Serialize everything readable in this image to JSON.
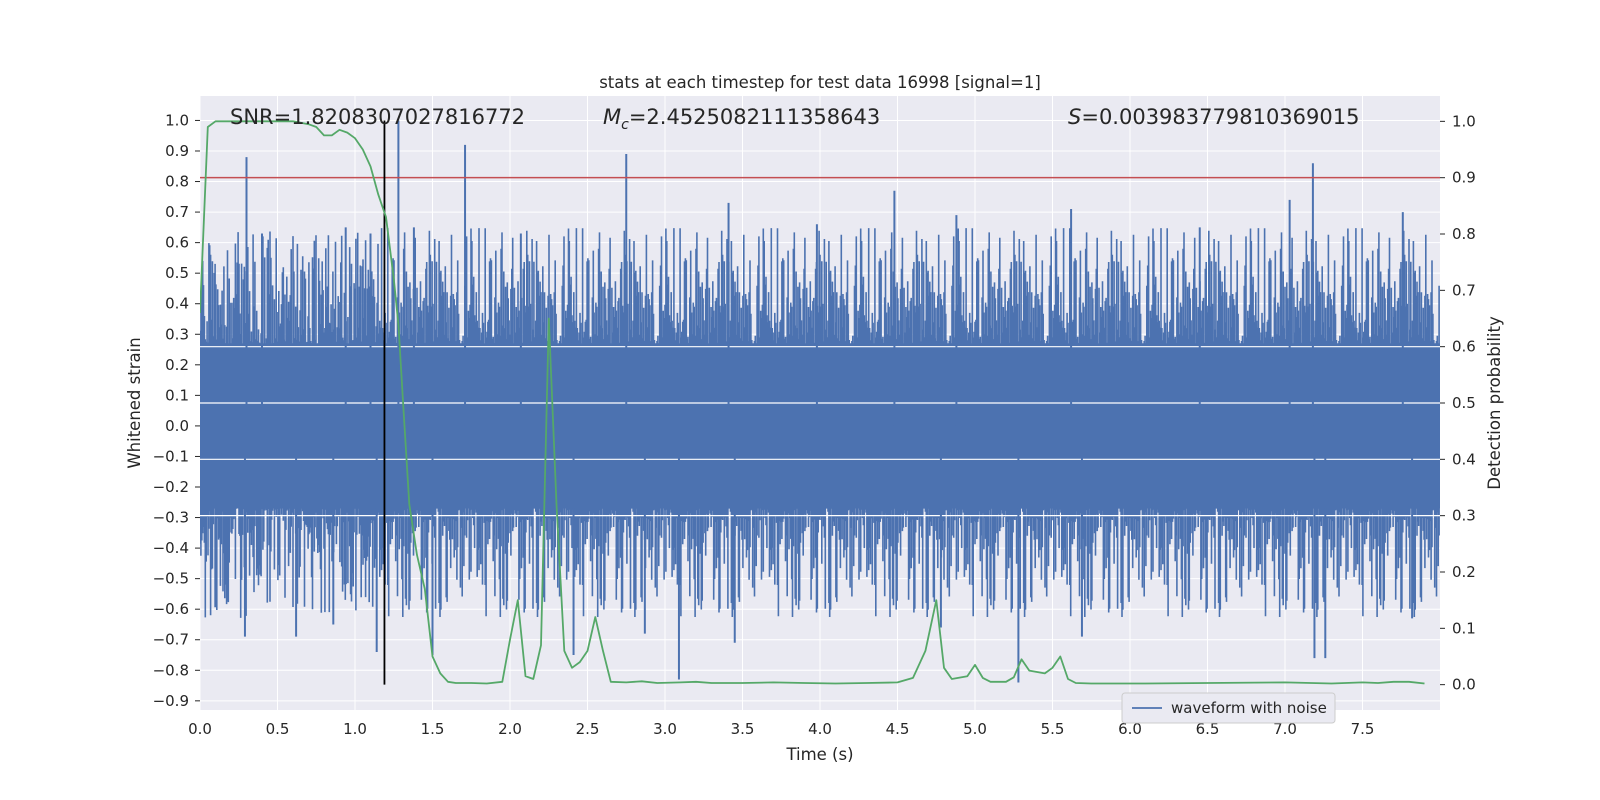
{
  "chart_data": {
    "type": "line",
    "title": "stats at each timestep for test data 16998 [signal=1]",
    "xlabel": "Time (s)",
    "ylabel": "Whitened strain",
    "ylabel_right": "Detection probability",
    "xlim": [
      0.0,
      8.0
    ],
    "ylim": [
      -0.93,
      1.08
    ],
    "ylim_right": [
      -0.045,
      1.045
    ],
    "x_ticks": [
      "0.0",
      "0.5",
      "1.0",
      "1.5",
      "2.0",
      "2.5",
      "3.0",
      "3.5",
      "4.0",
      "4.5",
      "5.0",
      "5.5",
      "6.0",
      "6.5",
      "7.0",
      "7.5"
    ],
    "y_ticks": [
      "−0.9",
      "−0.8",
      "−0.7",
      "−0.6",
      "−0.5",
      "−0.4",
      "−0.3",
      "−0.2",
      "−0.1",
      "0.0",
      "0.1",
      "0.2",
      "0.3",
      "0.4",
      "0.5",
      "0.6",
      "0.7",
      "0.8",
      "0.9",
      "1.0"
    ],
    "y_ticks_right": [
      "0.0",
      "0.1",
      "0.2",
      "0.3",
      "0.4",
      "0.5",
      "0.6",
      "0.7",
      "0.8",
      "0.9",
      "1.0"
    ],
    "annotations": {
      "snr": "SNR=1.8208307027816772",
      "mc_symbol": "M",
      "mc_sub": "c",
      "mc_value": "=2.4525082111358643",
      "s_symbol": "S",
      "s_value": "=0.003983779810369015"
    },
    "threshold_prob": 0.9,
    "event_time": 1.19,
    "series": [
      {
        "name": "waveform with noise",
        "axis": "left",
        "color": "#4c72b0",
        "envelope_core": 0.27,
        "spikes": [
          {
            "x": 0.3,
            "y": 0.88
          },
          {
            "x": 0.29,
            "y": -0.69
          },
          {
            "x": 0.4,
            "y": 0.63
          },
          {
            "x": 0.62,
            "y": -0.69
          },
          {
            "x": 0.86,
            "y": -0.65
          },
          {
            "x": 0.94,
            "y": 0.65
          },
          {
            "x": 1.1,
            "y": 0.63
          },
          {
            "x": 1.14,
            "y": -0.74
          },
          {
            "x": 1.28,
            "y": 1.0
          },
          {
            "x": 1.38,
            "y": 0.65
          },
          {
            "x": 1.5,
            "y": -0.75
          },
          {
            "x": 1.71,
            "y": 0.92
          },
          {
            "x": 2.07,
            "y": 0.63
          },
          {
            "x": 2.41,
            "y": -0.75
          },
          {
            "x": 2.75,
            "y": 0.89
          },
          {
            "x": 2.87,
            "y": -0.68
          },
          {
            "x": 3.09,
            "y": -0.83
          },
          {
            "x": 3.41,
            "y": 0.73
          },
          {
            "x": 3.45,
            "y": -0.71
          },
          {
            "x": 3.98,
            "y": 0.66
          },
          {
            "x": 4.48,
            "y": 0.77
          },
          {
            "x": 4.78,
            "y": -0.66
          },
          {
            "x": 4.88,
            "y": 0.69
          },
          {
            "x": 5.28,
            "y": -0.84
          },
          {
            "x": 5.62,
            "y": 0.71
          },
          {
            "x": 5.69,
            "y": -0.69
          },
          {
            "x": 6.45,
            "y": 0.65
          },
          {
            "x": 7.03,
            "y": 0.74
          },
          {
            "x": 7.18,
            "y": 0.86
          },
          {
            "x": 7.19,
            "y": -0.76
          },
          {
            "x": 7.26,
            "y": -0.76
          },
          {
            "x": 7.76,
            "y": 0.7
          },
          {
            "x": 7.82,
            "y": -0.63
          }
        ]
      },
      {
        "name": "",
        "axis": "right",
        "color": "#55a868",
        "x": [
          0.0,
          0.05,
          0.1,
          0.2,
          0.3,
          0.4,
          0.5,
          0.6,
          0.7,
          0.75,
          0.8,
          0.85,
          0.9,
          0.95,
          1.0,
          1.05,
          1.1,
          1.15,
          1.2,
          1.25,
          1.28,
          1.31,
          1.35,
          1.4,
          1.45,
          1.5,
          1.55,
          1.6,
          1.65,
          1.75,
          1.85,
          1.95,
          2.0,
          2.05,
          2.1,
          2.15,
          2.2,
          2.25,
          2.3,
          2.35,
          2.4,
          2.45,
          2.5,
          2.55,
          2.6,
          2.65,
          2.75,
          2.85,
          2.95,
          3.1,
          3.2,
          3.3,
          3.5,
          3.7,
          3.9,
          4.1,
          4.3,
          4.5,
          4.6,
          4.68,
          4.75,
          4.8,
          4.85,
          4.95,
          5.0,
          5.05,
          5.1,
          5.2,
          5.25,
          5.3,
          5.35,
          5.45,
          5.5,
          5.55,
          5.6,
          5.65,
          5.75,
          5.9,
          6.1,
          6.5,
          7.0,
          7.3,
          7.5,
          7.6,
          7.7,
          7.8,
          7.9
        ],
        "y": [
          0.66,
          0.99,
          1.0,
          1.0,
          1.0,
          1.0,
          1.0,
          1.0,
          0.995,
          0.99,
          0.975,
          0.975,
          0.985,
          0.98,
          0.97,
          0.95,
          0.92,
          0.87,
          0.83,
          0.72,
          0.64,
          0.5,
          0.32,
          0.23,
          0.17,
          0.05,
          0.02,
          0.005,
          0.003,
          0.003,
          0.002,
          0.005,
          0.08,
          0.15,
          0.015,
          0.01,
          0.07,
          0.65,
          0.32,
          0.06,
          0.03,
          0.04,
          0.06,
          0.12,
          0.06,
          0.005,
          0.004,
          0.006,
          0.003,
          0.004,
          0.005,
          0.003,
          0.003,
          0.004,
          0.003,
          0.002,
          0.003,
          0.004,
          0.012,
          0.06,
          0.15,
          0.03,
          0.01,
          0.015,
          0.035,
          0.012,
          0.005,
          0.005,
          0.013,
          0.045,
          0.025,
          0.02,
          0.03,
          0.05,
          0.01,
          0.003,
          0.002,
          0.002,
          0.002,
          0.003,
          0.004,
          0.002,
          0.004,
          0.003,
          0.005,
          0.005,
          0.002
        ]
      }
    ]
  }
}
